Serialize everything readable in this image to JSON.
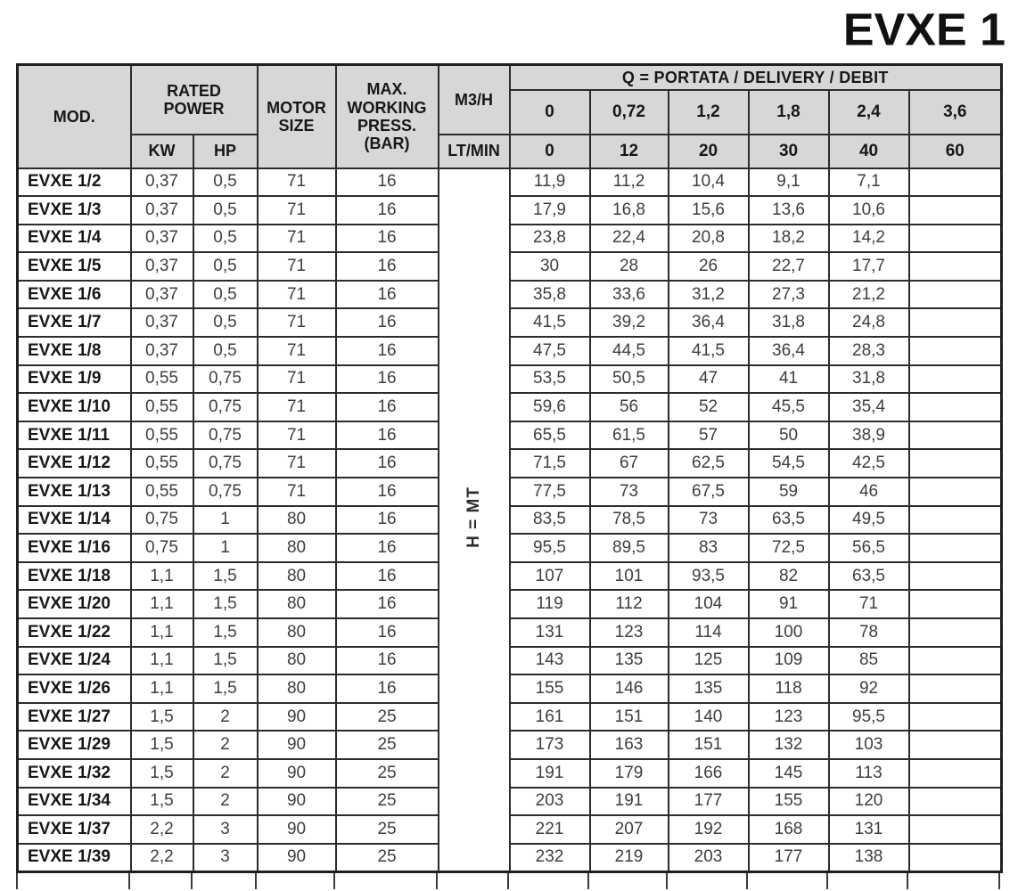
{
  "title": "EVXE 1",
  "colors": {
    "header_bg": "#d7d7d7",
    "border": "#1f1f1f",
    "data_text": "#3e3e3e"
  },
  "table": {
    "headers": {
      "mod": "MOD.",
      "rated_power": "RATED\nPOWER",
      "kw": "KW",
      "hp": "HP",
      "motor_size": "MOTOR\nSIZE",
      "max_working_press": "MAX.\nWORKING\nPRESS.\n(BAR)",
      "m3h": "M3/H",
      "ltmin": "LT/MIN",
      "q_title": "Q = PORTATA / DELIVERY / DEBIT",
      "m3h_values": [
        "0",
        "0,72",
        "1,2",
        "1,8",
        "2,4",
        "3,6"
      ],
      "ltmin_values": [
        "0",
        "12",
        "20",
        "30",
        "40",
        "60"
      ]
    },
    "h_label": "H = MT",
    "rows": [
      {
        "mod": "EVXE 1/2",
        "kw": "0,37",
        "hp": "0,5",
        "motor": "71",
        "press": "16",
        "q": [
          "11,9",
          "11,2",
          "10,4",
          "9,1",
          "7,1",
          ""
        ]
      },
      {
        "mod": "EVXE 1/3",
        "kw": "0,37",
        "hp": "0,5",
        "motor": "71",
        "press": "16",
        "q": [
          "17,9",
          "16,8",
          "15,6",
          "13,6",
          "10,6",
          ""
        ]
      },
      {
        "mod": "EVXE 1/4",
        "kw": "0,37",
        "hp": "0,5",
        "motor": "71",
        "press": "16",
        "q": [
          "23,8",
          "22,4",
          "20,8",
          "18,2",
          "14,2",
          ""
        ]
      },
      {
        "mod": "EVXE 1/5",
        "kw": "0,37",
        "hp": "0,5",
        "motor": "71",
        "press": "16",
        "q": [
          "30",
          "28",
          "26",
          "22,7",
          "17,7",
          ""
        ]
      },
      {
        "mod": "EVXE 1/6",
        "kw": "0,37",
        "hp": "0,5",
        "motor": "71",
        "press": "16",
        "q": [
          "35,8",
          "33,6",
          "31,2",
          "27,3",
          "21,2",
          ""
        ]
      },
      {
        "mod": "EVXE 1/7",
        "kw": "0,37",
        "hp": "0,5",
        "motor": "71",
        "press": "16",
        "q": [
          "41,5",
          "39,2",
          "36,4",
          "31,8",
          "24,8",
          ""
        ]
      },
      {
        "mod": "EVXE 1/8",
        "kw": "0,37",
        "hp": "0,5",
        "motor": "71",
        "press": "16",
        "q": [
          "47,5",
          "44,5",
          "41,5",
          "36,4",
          "28,3",
          ""
        ]
      },
      {
        "mod": "EVXE 1/9",
        "kw": "0,55",
        "hp": "0,75",
        "motor": "71",
        "press": "16",
        "q": [
          "53,5",
          "50,5",
          "47",
          "41",
          "31,8",
          ""
        ]
      },
      {
        "mod": "EVXE 1/10",
        "kw": "0,55",
        "hp": "0,75",
        "motor": "71",
        "press": "16",
        "q": [
          "59,6",
          "56",
          "52",
          "45,5",
          "35,4",
          ""
        ]
      },
      {
        "mod": "EVXE 1/11",
        "kw": "0,55",
        "hp": "0,75",
        "motor": "71",
        "press": "16",
        "q": [
          "65,5",
          "61,5",
          "57",
          "50",
          "38,9",
          ""
        ]
      },
      {
        "mod": "EVXE 1/12",
        "kw": "0,55",
        "hp": "0,75",
        "motor": "71",
        "press": "16",
        "q": [
          "71,5",
          "67",
          "62,5",
          "54,5",
          "42,5",
          ""
        ]
      },
      {
        "mod": "EVXE 1/13",
        "kw": "0,55",
        "hp": "0,75",
        "motor": "71",
        "press": "16",
        "q": [
          "77,5",
          "73",
          "67,5",
          "59",
          "46",
          ""
        ]
      },
      {
        "mod": "EVXE 1/14",
        "kw": "0,75",
        "hp": "1",
        "motor": "80",
        "press": "16",
        "q": [
          "83,5",
          "78,5",
          "73",
          "63,5",
          "49,5",
          ""
        ]
      },
      {
        "mod": "EVXE 1/16",
        "kw": "0,75",
        "hp": "1",
        "motor": "80",
        "press": "16",
        "q": [
          "95,5",
          "89,5",
          "83",
          "72,5",
          "56,5",
          ""
        ]
      },
      {
        "mod": "EVXE 1/18",
        "kw": "1,1",
        "hp": "1,5",
        "motor": "80",
        "press": "16",
        "q": [
          "107",
          "101",
          "93,5",
          "82",
          "63,5",
          ""
        ]
      },
      {
        "mod": "EVXE 1/20",
        "kw": "1,1",
        "hp": "1,5",
        "motor": "80",
        "press": "16",
        "q": [
          "119",
          "112",
          "104",
          "91",
          "71",
          ""
        ]
      },
      {
        "mod": "EVXE 1/22",
        "kw": "1,1",
        "hp": "1,5",
        "motor": "80",
        "press": "16",
        "q": [
          "131",
          "123",
          "114",
          "100",
          "78",
          ""
        ]
      },
      {
        "mod": "EVXE 1/24",
        "kw": "1,1",
        "hp": "1,5",
        "motor": "80",
        "press": "16",
        "q": [
          "143",
          "135",
          "125",
          "109",
          "85",
          ""
        ]
      },
      {
        "mod": "EVXE 1/26",
        "kw": "1,1",
        "hp": "1,5",
        "motor": "80",
        "press": "16",
        "q": [
          "155",
          "146",
          "135",
          "118",
          "92",
          ""
        ]
      },
      {
        "mod": "EVXE 1/27",
        "kw": "1,5",
        "hp": "2",
        "motor": "90",
        "press": "25",
        "q": [
          "161",
          "151",
          "140",
          "123",
          "95,5",
          ""
        ]
      },
      {
        "mod": "EVXE 1/29",
        "kw": "1,5",
        "hp": "2",
        "motor": "90",
        "press": "25",
        "q": [
          "173",
          "163",
          "151",
          "132",
          "103",
          ""
        ]
      },
      {
        "mod": "EVXE 1/32",
        "kw": "1,5",
        "hp": "2",
        "motor": "90",
        "press": "25",
        "q": [
          "191",
          "179",
          "166",
          "145",
          "113",
          ""
        ]
      },
      {
        "mod": "EVXE 1/34",
        "kw": "1,5",
        "hp": "2",
        "motor": "90",
        "press": "25",
        "q": [
          "203",
          "191",
          "177",
          "155",
          "120",
          ""
        ]
      },
      {
        "mod": "EVXE 1/37",
        "kw": "2,2",
        "hp": "3",
        "motor": "90",
        "press": "25",
        "q": [
          "221",
          "207",
          "192",
          "168",
          "131",
          ""
        ]
      },
      {
        "mod": "EVXE 1/39",
        "kw": "2,2",
        "hp": "3",
        "motor": "90",
        "press": "25",
        "q": [
          "232",
          "219",
          "203",
          "177",
          "138",
          ""
        ]
      }
    ]
  }
}
